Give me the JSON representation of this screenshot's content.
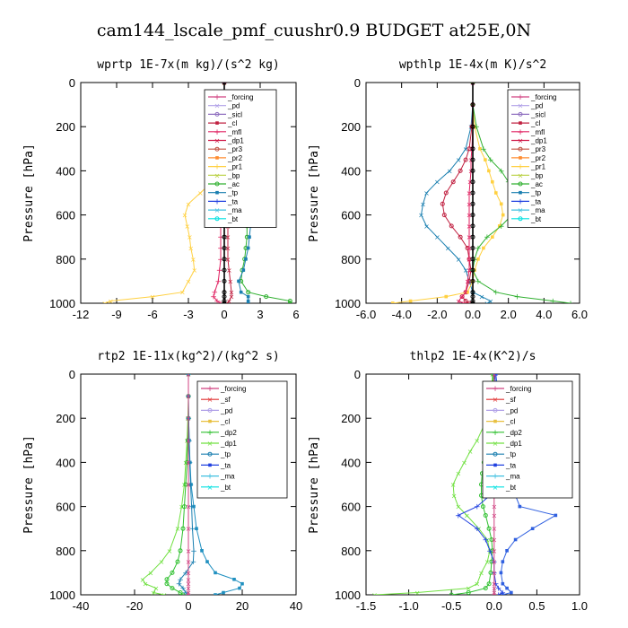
{
  "figure_title": "cam144_lscale_pmf_cuushr0.9  BUDGET at25E,0N",
  "colors": {
    "forcing": "#d04080",
    "pd": "#b0a0e8",
    "sicl": "#9070c0",
    "cl": "#c02040",
    "mfl": "#e02060",
    "dp1": "#d01848",
    "dp2": "#30c030",
    "pr3": "#c05040",
    "pr2": "#ff8c30",
    "pr1": "#ffd040",
    "bp": "#b8d040",
    "ac": "#30b030",
    "tp": "#1a7fb0",
    "ta": "#2040e0",
    "ma": "#40c0e0",
    "bt": "#00e0e0",
    "sf": "#e03030",
    "cl_yellow": "#e8c040",
    "dp1_lime": "#70e040",
    "tp_blue": "#3060e0",
    "ta_teal": "#2090c0",
    "black": "#000000"
  },
  "chart_data": [
    {
      "type": "line",
      "title": "wprtp  1E-7x(m kg)/(s^2 kg)",
      "ylabel": "Pressure [hPa]",
      "xlim": [
        -12,
        6
      ],
      "ylim": [
        1000,
        0
      ],
      "xticks": [
        -12,
        -9,
        -6,
        -3,
        0,
        3,
        6
      ],
      "xtick_labels": [
        "-12",
        "-9",
        "-6",
        "-3",
        "0",
        "3",
        "6"
      ],
      "yticks": [
        0,
        200,
        400,
        600,
        800,
        1000
      ],
      "ytick_labels": [
        "0",
        "200",
        "400",
        "600",
        "800",
        "1000"
      ],
      "legend": [
        "_forcing",
        "_pd",
        "_sicl",
        "_cl",
        "_mfl",
        "_dp1",
        "_pr3",
        "_pr2",
        "_pr1",
        "_bp",
        "_ac",
        "_tp",
        "_ta",
        "_ma",
        "_bt"
      ],
      "legend_colors": [
        "forcing",
        "pd",
        "sicl",
        "cl",
        "mfl",
        "dp1",
        "pr3",
        "pr2",
        "pr1",
        "bp",
        "ac",
        "tp",
        "ta",
        "ma",
        "bt"
      ],
      "pressure": [
        0,
        100,
        200,
        300,
        400,
        450,
        500,
        550,
        600,
        650,
        700,
        750,
        800,
        850,
        900,
        950,
        970,
        990,
        1000
      ],
      "series": [
        {
          "name": "_pr1",
          "color": "pr1",
          "values": [
            0,
            0,
            0,
            -0.2,
            -0.5,
            -1.0,
            -2.0,
            -3.0,
            -3.3,
            -3.1,
            -2.9,
            -2.8,
            -2.6,
            -2.5,
            -3.0,
            -3.5,
            -6.0,
            -9.5,
            -10.0
          ]
        },
        {
          "name": "_ac",
          "color": "ac",
          "values": [
            0,
            0,
            0,
            0.2,
            0.6,
            0.9,
            1.2,
            1.5,
            1.8,
            1.9,
            1.9,
            1.8,
            1.7,
            1.5,
            1.4,
            2.0,
            3.5,
            5.5,
            5.5
          ]
        },
        {
          "name": "_tp",
          "color": "tp",
          "values": [
            0,
            0,
            0,
            0.3,
            0.6,
            0.8,
            1.0,
            1.5,
            2.0,
            2.2,
            2.1,
            2.0,
            1.8,
            1.6,
            1.2,
            1.4,
            2.0,
            2.0,
            2.0
          ]
        },
        {
          "name": "_mfl",
          "color": "mfl",
          "values": [
            0,
            0,
            0,
            0,
            -0.1,
            -0.2,
            -0.2,
            -0.3,
            -0.3,
            -0.3,
            -0.3,
            -0.3,
            -0.3,
            -0.4,
            -0.5,
            -0.8,
            -0.9,
            -0.6,
            -0.3
          ]
        },
        {
          "name": "_cl",
          "color": "cl",
          "values": [
            0,
            0,
            0,
            0,
            0.1,
            0.1,
            0.1,
            0.2,
            0.3,
            0.3,
            0.3,
            0.3,
            0.3,
            0.4,
            0.5,
            0.6,
            0.6,
            0.4,
            0.2
          ]
        },
        {
          "name": "_bt",
          "color": "black",
          "values": [
            0,
            0,
            0,
            0,
            0,
            0,
            0,
            0,
            0,
            0,
            0,
            0,
            0,
            0,
            0,
            0,
            0,
            0,
            0
          ]
        }
      ]
    },
    {
      "type": "line",
      "title": "wpthlp  1E-4x(m K)/s^2",
      "ylabel": "Pressure [hPa]",
      "xlim": [
        -6,
        6
      ],
      "ylim": [
        1000,
        0
      ],
      "xticks": [
        -6,
        -4,
        -2,
        0,
        2,
        4,
        6
      ],
      "xtick_labels": [
        "-6.0",
        "-4.0",
        "-2.0",
        "0.0",
        "2.0",
        "4.0",
        "6.0"
      ],
      "yticks": [
        0,
        200,
        400,
        600,
        800,
        1000
      ],
      "ytick_labels": [
        "0",
        "200",
        "400",
        "600",
        "800",
        "1000"
      ],
      "legend": [
        "_forcing",
        "_pd",
        "_sicl",
        "_cl",
        "_mfl",
        "_dp1",
        "_pr3",
        "_pr2",
        "_pr1",
        "_bp",
        "_ac",
        "_tp",
        "_ta",
        "_ma",
        "_bt"
      ],
      "legend_colors": [
        "forcing",
        "pd",
        "sicl",
        "cl",
        "mfl",
        "dp1",
        "pr3",
        "pr2",
        "pr1",
        "bp",
        "ac",
        "tp",
        "ta",
        "ma",
        "bt"
      ],
      "pressure": [
        0,
        100,
        200,
        300,
        350,
        400,
        450,
        500,
        550,
        600,
        650,
        700,
        750,
        800,
        850,
        900,
        950,
        970,
        990,
        1000
      ],
      "series": [
        {
          "name": "_tp",
          "color": "tp",
          "values": [
            0,
            0,
            -0.1,
            -0.4,
            -0.8,
            -1.3,
            -2.0,
            -2.6,
            -2.8,
            -2.9,
            -2.6,
            -2.0,
            -1.4,
            -0.8,
            -0.4,
            -0.2,
            0,
            0.5,
            1.0,
            0.8
          ]
        },
        {
          "name": "_cl",
          "color": "cl",
          "values": [
            0,
            0,
            -0.05,
            -0.2,
            -0.4,
            -0.7,
            -1.1,
            -1.5,
            -1.7,
            -1.6,
            -1.2,
            -0.7,
            -0.3,
            -0.2,
            -0.1,
            -0.2,
            -0.4,
            -0.6,
            -0.4,
            -0.2
          ]
        },
        {
          "name": "_pr1",
          "color": "pr1",
          "values": [
            0,
            0,
            0.1,
            0.4,
            0.7,
            0.9,
            1.1,
            1.3,
            1.6,
            1.7,
            1.5,
            1.1,
            0.6,
            0.3,
            0.1,
            0,
            -0.3,
            -1.5,
            -3.5,
            -4.5
          ]
        },
        {
          "name": "_ac",
          "color": "ac",
          "values": [
            0,
            0,
            0.2,
            0.6,
            1.0,
            1.6,
            2.0,
            2.3,
            2.4,
            2.2,
            1.6,
            0.8,
            0.3,
            0.1,
            0,
            0.3,
            1.3,
            2.5,
            4.5,
            5.5
          ]
        },
        {
          "name": "_mfl",
          "color": "mfl",
          "values": [
            0,
            0,
            0,
            -0.05,
            -0.1,
            -0.1,
            -0.15,
            -0.2,
            -0.2,
            -0.2,
            -0.2,
            -0.2,
            -0.2,
            -0.2,
            -0.2,
            -0.3,
            -0.4,
            -0.6,
            -0.8,
            -0.5
          ]
        },
        {
          "name": "_bt",
          "color": "black",
          "values": [
            0,
            0,
            0,
            0,
            0,
            0,
            0,
            0,
            0,
            0,
            0,
            0,
            0,
            0,
            0,
            0,
            0,
            0,
            0,
            0
          ]
        }
      ]
    },
    {
      "type": "line",
      "title": "rtp2  1E-11x(kg^2)/(kg^2 s)",
      "ylabel": "Pressure [hPa]",
      "xlim": [
        -40,
        40
      ],
      "ylim": [
        1000,
        0
      ],
      "xticks": [
        -40,
        -20,
        0,
        20,
        40
      ],
      "xtick_labels": [
        "-40",
        "-20",
        "0",
        "20",
        "40"
      ],
      "yticks": [
        0,
        200,
        400,
        600,
        800,
        1000
      ],
      "ytick_labels": [
        "0",
        "200",
        "400",
        "600",
        "800",
        "1000"
      ],
      "legend": [
        "_forcing",
        "_sf",
        "_pd",
        "_cl",
        "_dp2",
        "_dp1",
        "_tp",
        "_ta",
        "_ma",
        "_bt"
      ],
      "legend_colors": [
        "forcing",
        "sf",
        "pd",
        "cl_yellow",
        "dp2",
        "dp1_lime",
        "tp",
        "ta",
        "ma",
        "bt"
      ],
      "pressure": [
        0,
        100,
        200,
        300,
        400,
        500,
        600,
        700,
        800,
        850,
        900,
        930,
        950,
        970,
        990,
        1000
      ],
      "series": [
        {
          "name": "_dp1",
          "color": "dp1_lime",
          "values": [
            0,
            0,
            -0.2,
            -0.5,
            -1.0,
            -1.5,
            -2.5,
            -4.0,
            -7.0,
            -10.0,
            -14.0,
            -17.0,
            -16.0,
            -12.0,
            -13.0,
            -9.0
          ]
        },
        {
          "name": "_dp2",
          "color": "dp2",
          "values": [
            0,
            0,
            0,
            -0.2,
            -0.5,
            -1.0,
            -1.5,
            -2.0,
            -3.0,
            -4.0,
            -6.0,
            -8.0,
            -8.0,
            -6.0,
            -3.0,
            -2.0
          ]
        },
        {
          "name": "_ta",
          "color": "ta_teal",
          "values": [
            0,
            0,
            0.1,
            0.3,
            0.6,
            1.0,
            2.0,
            3.0,
            5.0,
            7.0,
            10.0,
            17.0,
            20.0,
            19.0,
            13.0,
            10.0
          ]
        },
        {
          "name": "_tp",
          "color": "tp",
          "values": [
            0,
            0,
            0.1,
            0.3,
            0.5,
            0.8,
            1.2,
            1.5,
            2.0,
            1.8,
            -1.0,
            -3.0,
            -3.5,
            -2.0,
            -1.0,
            0
          ]
        },
        {
          "name": "_forcing",
          "color": "forcing",
          "values": [
            0,
            0,
            0,
            0,
            0,
            0,
            0,
            0,
            0,
            0,
            0,
            0,
            0,
            0,
            0,
            0
          ]
        }
      ]
    },
    {
      "type": "line",
      "title": "thlp2  1E-4x(K^2)/s",
      "ylabel": "Pressure [hPa]",
      "xlim": [
        -1.5,
        1.0
      ],
      "ylim": [
        1000,
        0
      ],
      "xticks": [
        -1.5,
        -1.0,
        -0.5,
        0.0,
        0.5,
        1.0
      ],
      "xtick_labels": [
        "-1.5",
        "-1.0",
        "-0.5",
        "0.0",
        "0.5",
        "1.0"
      ],
      "yticks": [
        0,
        200,
        400,
        600,
        800,
        1000
      ],
      "ytick_labels": [
        "0",
        "200",
        "400",
        "600",
        "800",
        "1000"
      ],
      "legend": [
        "_forcing",
        "_sf",
        "_pd",
        "_cl",
        "_dp2",
        "_dp1",
        "_tp",
        "_ta",
        "_ma",
        "_bt"
      ],
      "legend_colors": [
        "forcing",
        "sf",
        "pd",
        "cl_yellow",
        "dp2",
        "dp1_lime",
        "tp",
        "ta",
        "ma",
        "bt"
      ],
      "pressure": [
        0,
        100,
        200,
        300,
        350,
        400,
        450,
        500,
        550,
        600,
        640,
        700,
        750,
        800,
        850,
        900,
        950,
        970,
        990,
        1000
      ],
      "series": [
        {
          "name": "_dp1",
          "color": "dp1_lime",
          "values": [
            -0.02,
            -0.03,
            -0.08,
            -0.2,
            -0.28,
            -0.35,
            -0.42,
            -0.48,
            -0.47,
            -0.42,
            -0.32,
            -0.18,
            -0.08,
            -0.05,
            -0.08,
            -0.15,
            -0.2,
            -0.3,
            -0.9,
            -1.4
          ]
        },
        {
          "name": "_dp2",
          "color": "dp2",
          "values": [
            -0.01,
            -0.02,
            -0.04,
            -0.08,
            -0.1,
            -0.12,
            -0.14,
            -0.15,
            -0.15,
            -0.13,
            -0.1,
            -0.06,
            -0.03,
            -0.02,
            -0.03,
            -0.04,
            -0.06,
            -0.1,
            -0.3,
            -0.5
          ]
        },
        {
          "name": "_tp",
          "color": "tp_blue",
          "values": [
            0.02,
            0.05,
            0.08,
            0.12,
            0.15,
            0.18,
            0.2,
            0.22,
            0.25,
            0.3,
            0.72,
            0.45,
            0.25,
            0.15,
            0.1,
            0.08,
            0.1,
            0.15,
            0.2,
            0.1
          ]
        },
        {
          "name": "_ta",
          "color": "ta",
          "values": [
            0.01,
            0.02,
            0.03,
            0.05,
            0.06,
            0.06,
            0.05,
            0.03,
            -0.05,
            -0.2,
            -0.42,
            -0.2,
            -0.1,
            -0.05,
            0,
            0,
            0.02,
            0.05,
            0.1,
            0.05
          ]
        },
        {
          "name": "_forcing",
          "color": "forcing",
          "values": [
            0,
            0,
            0,
            0,
            0,
            0,
            0,
            0,
            0,
            0,
            0,
            0,
            0,
            0,
            0,
            0,
            0,
            0,
            0,
            0
          ]
        }
      ]
    }
  ]
}
